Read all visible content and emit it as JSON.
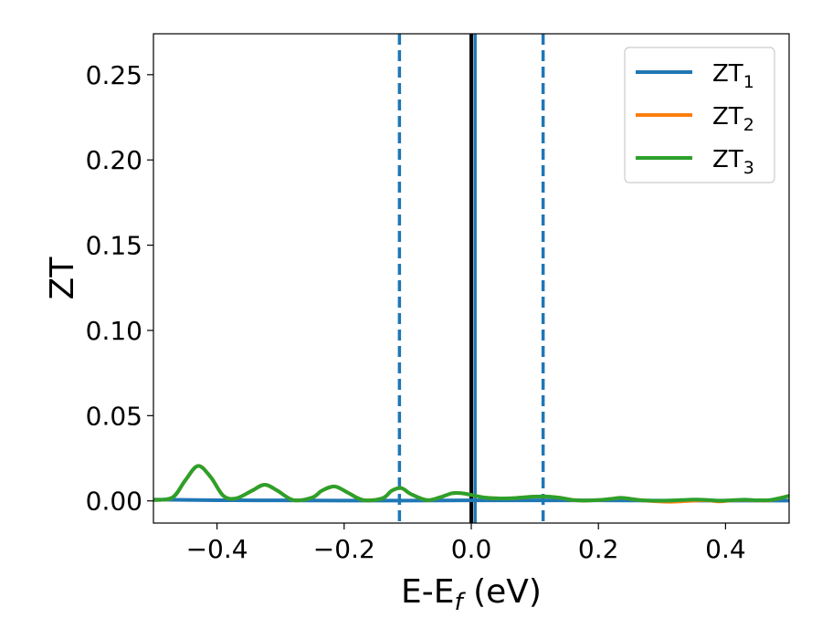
{
  "chart_data": {
    "type": "line",
    "xlabel": {
      "main": "E-E",
      "sub": "f",
      "suffix": " (eV)"
    },
    "ylabel": "ZT",
    "xlim": [
      -0.5,
      0.5
    ],
    "ylim": [
      -0.013,
      0.274
    ],
    "x_ticks": [
      -0.4,
      -0.2,
      0.0,
      0.2,
      0.4
    ],
    "x_tick_labels": [
      "−0.4",
      "−0.2",
      "0.0",
      "0.2",
      "0.4"
    ],
    "y_ticks": [
      0.0,
      0.05,
      0.1,
      0.15,
      0.2,
      0.25
    ],
    "y_tick_labels": [
      "0.00",
      "0.05",
      "0.10",
      "0.15",
      "0.20",
      "0.25"
    ],
    "grid": false,
    "legend_position": "top-right",
    "vertical_lines": [
      {
        "x": 0.0,
        "style": "solid",
        "color": "#000000"
      },
      {
        "x": 0.006,
        "style": "solid",
        "color": "#1f77b4"
      },
      {
        "x": -0.113,
        "style": "dashed",
        "color": "#1f77b4"
      },
      {
        "x": 0.113,
        "style": "dashed",
        "color": "#1f77b4"
      }
    ],
    "series": [
      {
        "name": "ZT",
        "name_sub": "1",
        "color": "#1f77b4",
        "x": [
          -0.5,
          -0.45,
          -0.4,
          -0.3,
          -0.2,
          -0.1,
          0.0,
          0.1,
          0.2,
          0.3,
          0.4,
          0.5
        ],
        "y": [
          0.0008,
          0.0006,
          0.0004,
          0.0003,
          0.0002,
          0.0002,
          0.0003,
          0.0003,
          0.0003,
          0.0002,
          0.0002,
          0.0002
        ]
      },
      {
        "name": "ZT",
        "name_sub": "2",
        "color": "#ff7f0e",
        "x": [
          -0.5,
          -0.47,
          -0.45,
          -0.43,
          -0.41,
          -0.39,
          -0.37,
          -0.345,
          -0.325,
          -0.305,
          -0.28,
          -0.25,
          -0.235,
          -0.215,
          -0.195,
          -0.17,
          -0.14,
          -0.125,
          -0.11,
          -0.095,
          -0.07,
          -0.05,
          -0.03,
          -0.015,
          0.0,
          0.02,
          0.04,
          0.06,
          0.08,
          0.1,
          0.12,
          0.14,
          0.16,
          0.18,
          0.2,
          0.22,
          0.235,
          0.25,
          0.27,
          0.29,
          0.31,
          0.33,
          0.35,
          0.37,
          0.39,
          0.41,
          0.43,
          0.45,
          0.47,
          0.49,
          0.5
        ],
        "y": [
          0.0005,
          0.002,
          0.012,
          0.0205,
          0.014,
          0.003,
          0.0015,
          0.006,
          0.0095,
          0.006,
          0.0005,
          0.002,
          0.006,
          0.0085,
          0.005,
          0.0005,
          0.0015,
          0.006,
          0.0075,
          0.004,
          0.0005,
          0.002,
          0.0045,
          0.0045,
          0.0035,
          0.002,
          0.0015,
          0.0015,
          0.002,
          0.0025,
          0.0025,
          0.0018,
          0.0005,
          0.0002,
          0.0005,
          0.0012,
          0.0018,
          0.0012,
          0.0003,
          -0.0002,
          -0.0005,
          -0.0003,
          0.0002,
          0.0004,
          -0.0003,
          0.0003,
          0.0006,
          0.0003,
          0.0004,
          0.002,
          0.003
        ]
      },
      {
        "name": "ZT",
        "name_sub": "3",
        "color": "#2ca02c",
        "x": [
          -0.5,
          -0.47,
          -0.45,
          -0.43,
          -0.41,
          -0.39,
          -0.37,
          -0.345,
          -0.325,
          -0.305,
          -0.28,
          -0.25,
          -0.235,
          -0.215,
          -0.195,
          -0.17,
          -0.14,
          -0.125,
          -0.11,
          -0.095,
          -0.07,
          -0.05,
          -0.03,
          -0.015,
          0.0,
          0.02,
          0.04,
          0.06,
          0.08,
          0.1,
          0.12,
          0.14,
          0.16,
          0.18,
          0.2,
          0.22,
          0.235,
          0.25,
          0.27,
          0.29,
          0.31,
          0.33,
          0.35,
          0.37,
          0.39,
          0.41,
          0.43,
          0.45,
          0.47,
          0.49,
          0.5
        ],
        "y": [
          0.0005,
          0.002,
          0.012,
          0.0205,
          0.014,
          0.003,
          0.0015,
          0.006,
          0.0095,
          0.006,
          0.0005,
          0.002,
          0.006,
          0.0085,
          0.005,
          0.0005,
          0.0015,
          0.006,
          0.0075,
          0.004,
          0.0005,
          0.002,
          0.0045,
          0.0045,
          0.0035,
          0.002,
          0.0015,
          0.0015,
          0.002,
          0.0025,
          0.0025,
          0.0018,
          0.0005,
          0.0002,
          0.0005,
          0.0012,
          0.0018,
          0.0012,
          0.0003,
          0.0001,
          0.0002,
          0.0005,
          0.0008,
          0.0006,
          0.0001,
          0.0004,
          0.0007,
          0.0004,
          0.0005,
          0.002,
          0.003
        ]
      }
    ]
  }
}
